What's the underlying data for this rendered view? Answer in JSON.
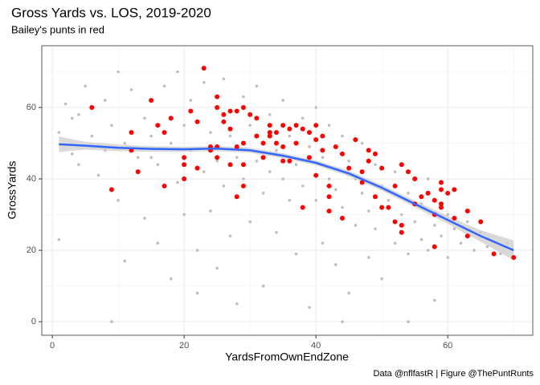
{
  "chart_data": {
    "type": "scatter",
    "title": "Gross Yards vs. LOS, 2019-2020",
    "subtitle": "Bailey's punts in red",
    "x_label": "YardsFromOwnEndZone",
    "y_label": "GrossYards",
    "caption": "Data @nflfastR | Figure @ThePuntRunts",
    "xlim": [
      -1.6,
      72.9
    ],
    "ylim": [
      -3.8,
      77.3
    ],
    "xticks": [
      0,
      20,
      40,
      60
    ],
    "yticks": [
      0,
      20,
      40,
      60
    ],
    "x_minor_ticks": [
      10,
      30,
      50,
      70
    ],
    "y_minor_ticks": [
      10,
      30,
      50,
      70
    ],
    "grid": true,
    "series": [
      {
        "color": "#bebebe",
        "x": [
          1,
          1,
          2,
          3,
          4,
          4,
          5,
          6,
          7,
          8,
          8,
          9,
          10,
          10,
          11,
          11,
          12,
          13,
          14,
          14,
          15,
          16,
          16,
          17,
          18,
          18,
          19,
          19,
          20,
          20,
          21,
          21,
          22,
          22,
          23,
          23,
          24,
          24,
          25,
          25,
          26,
          26,
          27,
          27,
          28,
          28,
          29,
          29,
          30,
          30,
          31,
          31,
          32,
          32,
          33,
          33,
          34,
          34,
          35,
          35,
          36,
          36,
          37,
          37,
          38,
          38,
          39,
          39,
          40,
          40,
          41,
          41,
          42,
          42,
          43,
          43,
          44,
          44,
          45,
          45,
          46,
          46,
          47,
          47,
          48,
          48,
          49,
          49,
          50,
          50,
          51,
          52,
          52,
          53,
          54,
          54,
          55,
          56,
          56,
          57,
          57,
          58,
          58,
          59,
          60,
          60,
          61,
          62,
          63,
          64,
          65,
          66,
          68,
          69,
          3,
          9,
          15,
          44,
          54
        ],
        "values": [
          53,
          23,
          61,
          47,
          58,
          44,
          66,
          52,
          41,
          62,
          48,
          55,
          70,
          34,
          17,
          50,
          65,
          46,
          29,
          57,
          52,
          22,
          44,
          66,
          12,
          50,
          70,
          39,
          55,
          30,
          62,
          48,
          8,
          20,
          67,
          42,
          53,
          31,
          15,
          45,
          68,
          38,
          52,
          24,
          46,
          5,
          63,
          40,
          55,
          28,
          66,
          45,
          36,
          10,
          58,
          42,
          48,
          25,
          62,
          40,
          52,
          34,
          44,
          19,
          57,
          38,
          49,
          4,
          60,
          34,
          46,
          22,
          55,
          40,
          37,
          16,
          52,
          32,
          45,
          8,
          40,
          27,
          50,
          36,
          31,
          18,
          44,
          26,
          38,
          12,
          34,
          42,
          22,
          30,
          36,
          19,
          28,
          33,
          23,
          40,
          20,
          27,
          6,
          24,
          30,
          18,
          26,
          22,
          28,
          20,
          25,
          21,
          19,
          22,
          57,
          0,
          46,
          0,
          0
        ]
      },
      {
        "color": "#ff0000",
        "x": [
          6,
          9,
          12,
          12,
          13,
          15,
          16,
          17,
          17,
          18,
          20,
          20,
          20,
          21,
          22,
          22,
          23,
          24,
          24,
          25,
          25,
          25,
          25,
          26,
          26,
          27,
          27,
          27,
          28,
          28,
          28,
          29,
          29,
          29,
          29,
          30,
          31,
          31,
          32,
          32,
          33,
          33,
          33,
          34,
          34,
          35,
          35,
          35,
          36,
          36,
          37,
          37,
          38,
          38,
          39,
          39,
          40,
          40,
          40,
          41,
          41,
          42,
          42,
          42,
          43,
          44,
          44,
          45,
          46,
          47,
          47,
          48,
          48,
          49,
          49,
          50,
          50,
          51,
          52,
          52,
          53,
          53,
          53,
          54,
          55,
          55,
          56,
          57,
          58,
          58,
          58,
          59,
          59,
          59,
          59,
          60,
          61,
          61,
          63,
          63,
          65,
          67,
          70
        ],
        "values": [
          60,
          37,
          53,
          48,
          42,
          62,
          55,
          53,
          38,
          57,
          46,
          44,
          40,
          59,
          43,
          56,
          71,
          49,
          48,
          60,
          63,
          46,
          49,
          58,
          56,
          59,
          54,
          44,
          59,
          49,
          35,
          60,
          50,
          44,
          38,
          58,
          57,
          52,
          50,
          46,
          55,
          53,
          52,
          53,
          50,
          55,
          49,
          45,
          54,
          45,
          55,
          50,
          54,
          32,
          53,
          46,
          55,
          51,
          41,
          52,
          48,
          38,
          35,
          31,
          49,
          47,
          29,
          43,
          51,
          42,
          39,
          48,
          45,
          47,
          35,
          43,
          32,
          32,
          38,
          28,
          44,
          27,
          25,
          42,
          40,
          33,
          35,
          36,
          34,
          30,
          21,
          39,
          37,
          33,
          32,
          36,
          37,
          29,
          31,
          24,
          28,
          19,
          18
        ]
      }
    ],
    "smooth": {
      "color": "#3366ff",
      "band_color": "#cccccc",
      "x": [
        1,
        5,
        10,
        15,
        20,
        25,
        30,
        35,
        40,
        45,
        50,
        55,
        60,
        65,
        70
      ],
      "values": [
        49.7,
        49.3,
        48.7,
        48.4,
        48.3,
        48.5,
        48,
        46.5,
        44.5,
        41.5,
        37.5,
        33,
        28.5,
        24,
        20
      ],
      "lower": [
        47.5,
        48.2,
        47.8,
        47.6,
        47.6,
        47.8,
        47.3,
        45.8,
        43.8,
        40.7,
        36.7,
        32.1,
        27.4,
        22.4,
        17.2
      ],
      "upper": [
        51.9,
        50.4,
        49.6,
        49.2,
        49,
        49.2,
        48.7,
        47.2,
        45.2,
        42.3,
        38.3,
        33.9,
        29.6,
        25.6,
        22.8
      ]
    }
  }
}
